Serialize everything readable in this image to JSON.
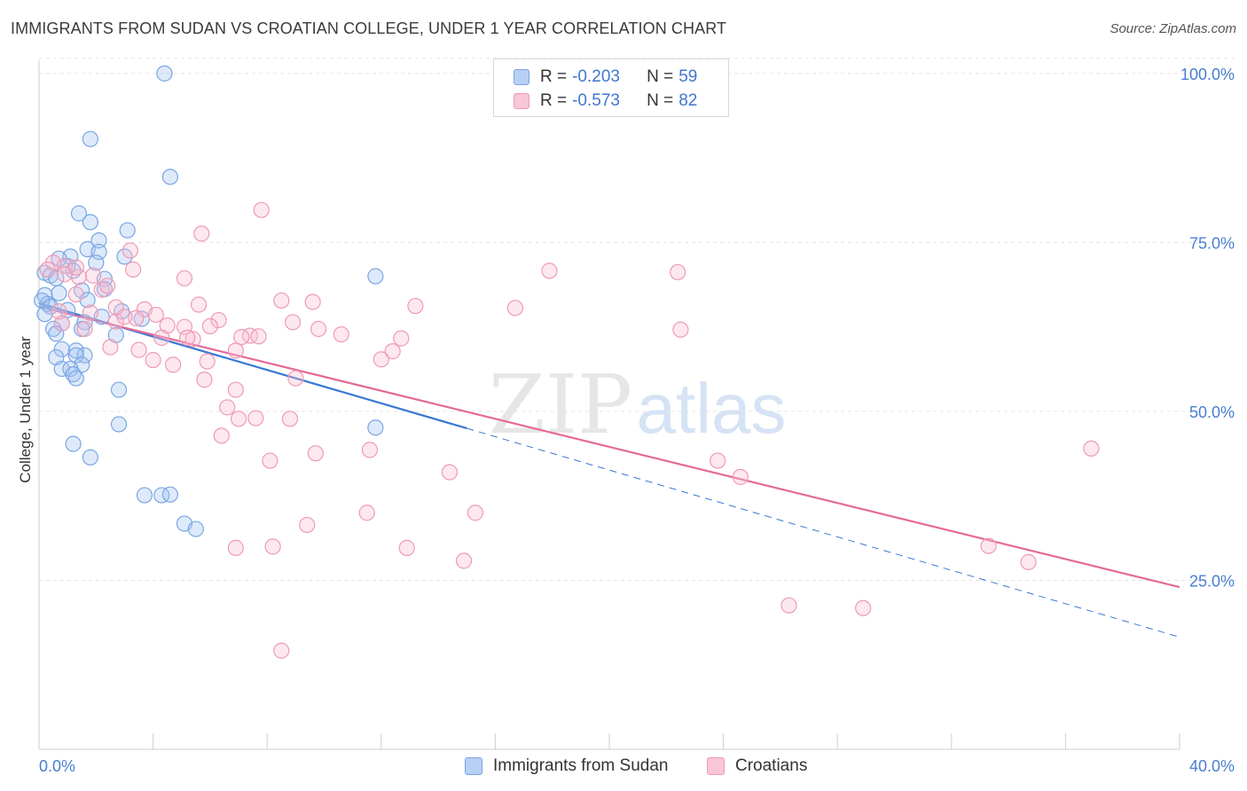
{
  "title": "IMMIGRANTS FROM SUDAN VS CROATIAN COLLEGE, UNDER 1 YEAR CORRELATION CHART",
  "source": "Source: ZipAtlas.com",
  "watermark": {
    "zip": "ZIP",
    "atlas": "atlas"
  },
  "legend": {
    "r_label": "R =",
    "n_label": "N =",
    "rows": [
      {
        "r": "-0.203",
        "n": "59",
        "fill": "#b8d0f3",
        "stroke": "#7aa6e3"
      },
      {
        "r": "-0.573",
        "n": "82",
        "fill": "#f8c6d6",
        "stroke": "#ee9ab5"
      }
    ]
  },
  "chart_data": {
    "type": "scatter",
    "title": "IMMIGRANTS FROM SUDAN VS CROATIAN COLLEGE, UNDER 1 YEAR CORRELATION CHART",
    "xlabel": "",
    "ylabel": "College, Under 1 year",
    "xlim": [
      0,
      40
    ],
    "ylim": [
      0,
      103
    ],
    "x_tick_labels": [
      "0.0%",
      "40.0%"
    ],
    "y_ticks": [
      25,
      50,
      75,
      100
    ],
    "y_tick_labels": [
      "25.0%",
      "50.0%",
      "75.0%",
      "100.0%"
    ],
    "grid": true,
    "legend_position": "top-center",
    "series": [
      {
        "name": "Immigrants from Sudan",
        "color": "#7aa6e3",
        "fill": "rgba(160,195,240,0.35)",
        "line_color": "#3a78d4",
        "trend": {
          "x0": 0,
          "y0": 66.0,
          "x1": 15.0,
          "y1": 47.5,
          "dashed_to_x": 40,
          "dashed_to_y": 16.6
        },
        "points": [
          [
            4.4,
            100.0
          ],
          [
            1.8,
            90.3
          ],
          [
            4.6,
            84.7
          ],
          [
            1.4,
            79.3
          ],
          [
            1.8,
            78.0
          ],
          [
            3.1,
            76.8
          ],
          [
            2.1,
            75.3
          ],
          [
            1.7,
            74.0
          ],
          [
            2.1,
            73.6
          ],
          [
            1.1,
            72.9
          ],
          [
            3.0,
            72.9
          ],
          [
            2.0,
            72.0
          ],
          [
            0.2,
            70.5
          ],
          [
            1.0,
            71.5
          ],
          [
            1.2,
            70.8
          ],
          [
            0.4,
            70.1
          ],
          [
            0.6,
            69.7
          ],
          [
            2.3,
            69.6
          ],
          [
            2.3,
            68.1
          ],
          [
            0.7,
            67.5
          ],
          [
            0.2,
            67.2
          ],
          [
            1.5,
            67.9
          ],
          [
            0.3,
            65.9
          ],
          [
            0.1,
            66.4
          ],
          [
            0.4,
            65.5
          ],
          [
            1.0,
            65.0
          ],
          [
            2.9,
            64.8
          ],
          [
            2.2,
            64.0
          ],
          [
            3.6,
            63.7
          ],
          [
            0.2,
            64.4
          ],
          [
            0.8,
            63.0
          ],
          [
            1.6,
            63.2
          ],
          [
            0.5,
            62.2
          ],
          [
            1.5,
            62.2
          ],
          [
            0.6,
            61.5
          ],
          [
            2.7,
            61.3
          ],
          [
            0.8,
            59.2
          ],
          [
            1.3,
            59.0
          ],
          [
            1.6,
            58.3
          ],
          [
            1.3,
            58.3
          ],
          [
            0.6,
            58.0
          ],
          [
            1.5,
            56.9
          ],
          [
            0.8,
            56.3
          ],
          [
            1.1,
            56.3
          ],
          [
            1.2,
            55.5
          ],
          [
            1.3,
            54.9
          ],
          [
            2.8,
            53.2
          ],
          [
            2.8,
            48.1
          ],
          [
            11.8,
            47.6
          ],
          [
            1.2,
            45.2
          ],
          [
            1.8,
            43.2
          ],
          [
            3.7,
            37.6
          ],
          [
            4.3,
            37.6
          ],
          [
            4.6,
            37.7
          ],
          [
            5.1,
            33.4
          ],
          [
            5.5,
            32.6
          ],
          [
            11.8,
            70.0
          ],
          [
            0.7,
            72.6
          ],
          [
            1.7,
            66.5
          ]
        ]
      },
      {
        "name": "Croatians",
        "color": "#ee9ab5",
        "fill": "rgba(248,190,210,0.35)",
        "line_color": "#e46a97",
        "trend": {
          "x0": 0,
          "y0": 65.5,
          "x1": 40,
          "y1": 24.0
        },
        "points": [
          [
            7.8,
            79.8
          ],
          [
            5.7,
            76.3
          ],
          [
            0.5,
            72.0
          ],
          [
            0.9,
            71.5
          ],
          [
            3.2,
            73.8
          ],
          [
            0.3,
            71.0
          ],
          [
            3.3,
            71.0
          ],
          [
            17.9,
            70.8
          ],
          [
            22.4,
            70.6
          ],
          [
            0.9,
            70.3
          ],
          [
            1.9,
            70.1
          ],
          [
            5.1,
            69.7
          ],
          [
            1.4,
            69.9
          ],
          [
            2.2,
            68.0
          ],
          [
            1.3,
            67.3
          ],
          [
            8.5,
            66.4
          ],
          [
            9.6,
            66.2
          ],
          [
            5.6,
            65.8
          ],
          [
            13.2,
            65.6
          ],
          [
            16.7,
            65.3
          ],
          [
            2.7,
            65.4
          ],
          [
            3.7,
            65.1
          ],
          [
            1.8,
            64.6
          ],
          [
            4.1,
            64.3
          ],
          [
            3.4,
            63.8
          ],
          [
            2.7,
            63.3
          ],
          [
            6.3,
            63.5
          ],
          [
            0.8,
            63.0
          ],
          [
            8.9,
            63.2
          ],
          [
            4.5,
            62.7
          ],
          [
            5.1,
            62.5
          ],
          [
            6.0,
            62.6
          ],
          [
            9.8,
            62.2
          ],
          [
            22.5,
            62.1
          ],
          [
            10.6,
            61.4
          ],
          [
            7.4,
            61.2
          ],
          [
            7.7,
            61.1
          ],
          [
            4.3,
            60.9
          ],
          [
            5.4,
            60.7
          ],
          [
            12.7,
            60.8
          ],
          [
            5.2,
            60.9
          ],
          [
            2.5,
            59.5
          ],
          [
            3.5,
            59.1
          ],
          [
            6.9,
            59.0
          ],
          [
            12.4,
            58.9
          ],
          [
            4.0,
            57.6
          ],
          [
            5.9,
            57.4
          ],
          [
            12.0,
            57.7
          ],
          [
            4.7,
            56.9
          ],
          [
            9.0,
            54.9
          ],
          [
            5.8,
            54.7
          ],
          [
            6.9,
            53.2
          ],
          [
            6.6,
            50.6
          ],
          [
            7.0,
            48.9
          ],
          [
            7.6,
            49.0
          ],
          [
            8.8,
            48.9
          ],
          [
            6.4,
            46.4
          ],
          [
            11.6,
            44.3
          ],
          [
            9.7,
            43.8
          ],
          [
            8.1,
            42.7
          ],
          [
            14.4,
            41.0
          ],
          [
            23.8,
            42.7
          ],
          [
            24.6,
            40.3
          ],
          [
            36.9,
            44.5
          ],
          [
            11.5,
            35.0
          ],
          [
            15.3,
            35.0
          ],
          [
            9.4,
            33.2
          ],
          [
            6.9,
            29.8
          ],
          [
            8.2,
            30.0
          ],
          [
            12.9,
            29.8
          ],
          [
            33.3,
            30.1
          ],
          [
            34.7,
            27.7
          ],
          [
            14.9,
            27.9
          ],
          [
            26.3,
            21.3
          ],
          [
            28.9,
            20.9
          ],
          [
            8.5,
            14.6
          ],
          [
            1.6,
            62.2
          ],
          [
            0.7,
            64.8
          ],
          [
            2.4,
            68.6
          ],
          [
            3.0,
            64.0
          ],
          [
            7.1,
            61.0
          ],
          [
            1.3,
            71.3
          ]
        ]
      }
    ]
  }
}
